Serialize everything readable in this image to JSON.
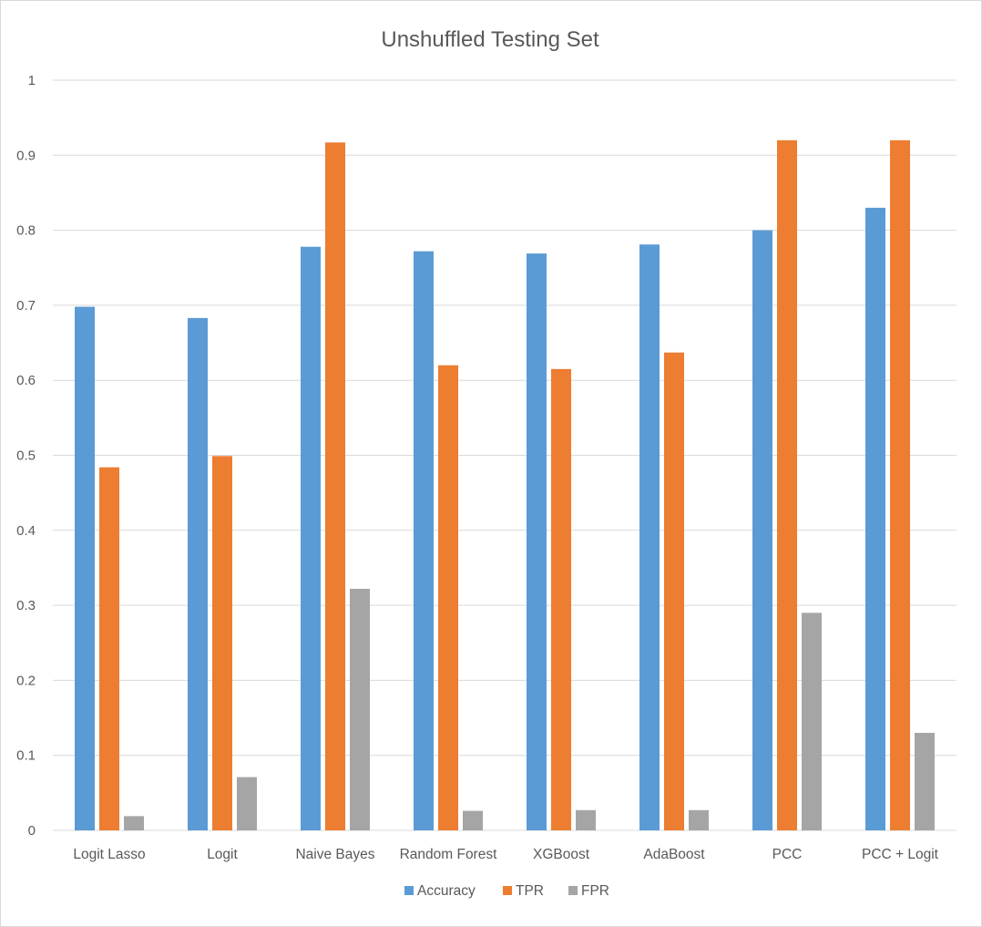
{
  "chart_data": {
    "type": "bar",
    "title": "Unshuffled Testing Set",
    "xlabel": "",
    "ylabel": "",
    "ylim": [
      0,
      1
    ],
    "yticks": [
      "0",
      "0.1",
      "0.2",
      "0.3",
      "0.4",
      "0.5",
      "0.6",
      "0.7",
      "0.8",
      "0.9",
      "1"
    ],
    "grid": true,
    "legend_position": "bottom",
    "categories": [
      "Logit Lasso",
      "Logit",
      "Naive Bayes",
      "Random Forest",
      "XGBoost",
      "AdaBoost",
      "PCC",
      "PCC + Logit"
    ],
    "series": [
      {
        "name": "Accuracy",
        "color": "#5b9bd5",
        "values": [
          0.698,
          0.683,
          0.778,
          0.772,
          0.769,
          0.781,
          0.8,
          0.83
        ]
      },
      {
        "name": "TPR",
        "color": "#ed7d31",
        "values": [
          0.484,
          0.499,
          0.917,
          0.62,
          0.615,
          0.637,
          0.92,
          0.92
        ]
      },
      {
        "name": "FPR",
        "color": "#a5a5a5",
        "values": [
          0.019,
          0.071,
          0.322,
          0.026,
          0.027,
          0.027,
          0.29,
          0.13
        ]
      }
    ]
  }
}
